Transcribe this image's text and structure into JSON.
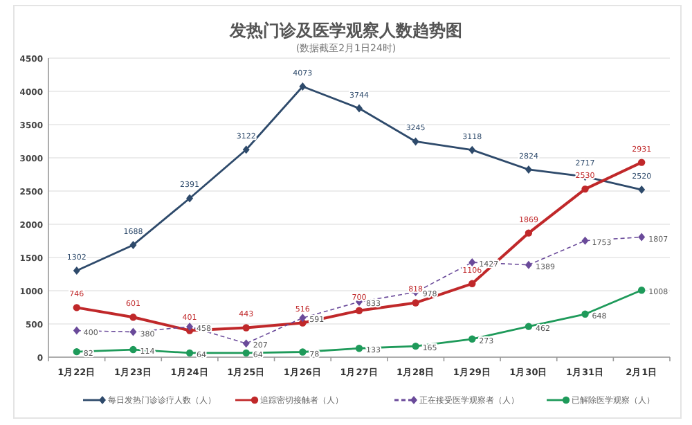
{
  "chart_data": {
    "type": "line",
    "title": "发热门诊及医学观察人数趋势图",
    "subtitle": "(数据截至2月1日24时)",
    "categories": [
      "1月22日",
      "1月23日",
      "1月24日",
      "1月25日",
      "1月26日",
      "1月27日",
      "1月28日",
      "1月29日",
      "1月30日",
      "1月31日",
      "2月1日"
    ],
    "series": [
      {
        "name": "每日发热门诊诊疗人数（人）",
        "color": "#2e4a6b",
        "marker": "diamond",
        "line_style": "solid",
        "values": [
          1302,
          1688,
          2391,
          3122,
          4073,
          3744,
          3245,
          3118,
          2824,
          2717,
          2520
        ]
      },
      {
        "name": "追踪密切接触者（人）",
        "color": "#c0282a",
        "marker": "circle",
        "line_style": "solid",
        "values": [
          746,
          601,
          401,
          443,
          516,
          700,
          818,
          1106,
          1869,
          2530,
          2931
        ]
      },
      {
        "name": "正在接受医学观察者（人）",
        "color": "#6a4a9a",
        "marker": "diamond",
        "line_style": "dashed",
        "values": [
          400,
          380,
          458,
          207,
          591,
          833,
          978,
          1427,
          1389,
          1753,
          1807
        ]
      },
      {
        "name": "已解除医学观察（人）",
        "color": "#1e9a5a",
        "marker": "circle",
        "line_style": "solid",
        "values": [
          82,
          114,
          64,
          64,
          78,
          133,
          165,
          273,
          462,
          648,
          1008
        ]
      }
    ],
    "ylim": [
      0,
      4500
    ],
    "yticks": [
      0,
      500,
      1000,
      1500,
      2000,
      2500,
      3000,
      3500,
      4000,
      4500
    ],
    "grid": "y",
    "legend": "bottom",
    "data_labels": true
  }
}
